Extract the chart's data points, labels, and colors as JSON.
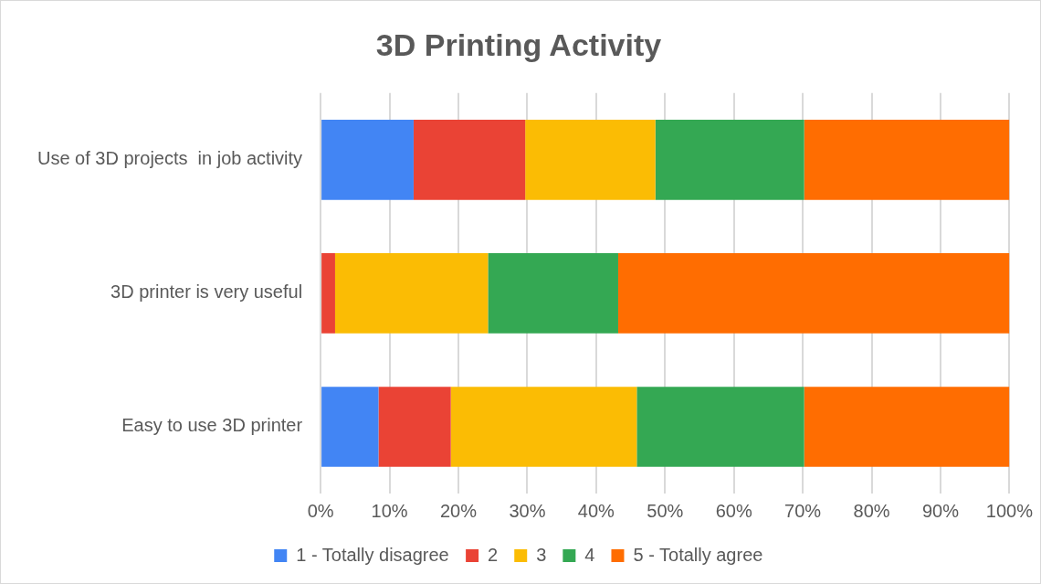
{
  "chart_data": {
    "type": "bar",
    "title": "3D Printing Activity",
    "orientation": "horizontal",
    "stacked": true,
    "categories": [
      "Use of 3D projects  in job activity",
      "3D printer is very useful",
      "Easy to use 3D printer"
    ],
    "series": [
      {
        "name": "1 - Totally disagree",
        "color": "#4285f4",
        "values": [
          13.5,
          0,
          8.4
        ]
      },
      {
        "name": "2",
        "color": "#ea4335",
        "values": [
          16.2,
          2.1,
          10.5
        ]
      },
      {
        "name": "3",
        "color": "#fbbc04",
        "values": [
          18.9,
          22.2,
          27.0
        ]
      },
      {
        "name": "4",
        "color": "#34a853",
        "values": [
          21.6,
          18.9,
          24.3
        ]
      },
      {
        "name": "5 - Totally agree",
        "color": "#ff6d01",
        "values": [
          29.8,
          56.8,
          29.8
        ]
      }
    ],
    "xlim": [
      0,
      100
    ],
    "xticks": [
      {
        "value": 0,
        "label": "0%"
      },
      {
        "value": 10,
        "label": "10%"
      },
      {
        "value": 20,
        "label": "20%"
      },
      {
        "value": 30,
        "label": "30%"
      },
      {
        "value": 40,
        "label": "40%"
      },
      {
        "value": 50,
        "label": "50%"
      },
      {
        "value": 60,
        "label": "60%"
      },
      {
        "value": 70,
        "label": "70%"
      },
      {
        "value": 80,
        "label": "80%"
      },
      {
        "value": 90,
        "label": "90%"
      },
      {
        "value": 100,
        "label": "100%"
      }
    ],
    "grid": "x",
    "legend": "bottom"
  }
}
